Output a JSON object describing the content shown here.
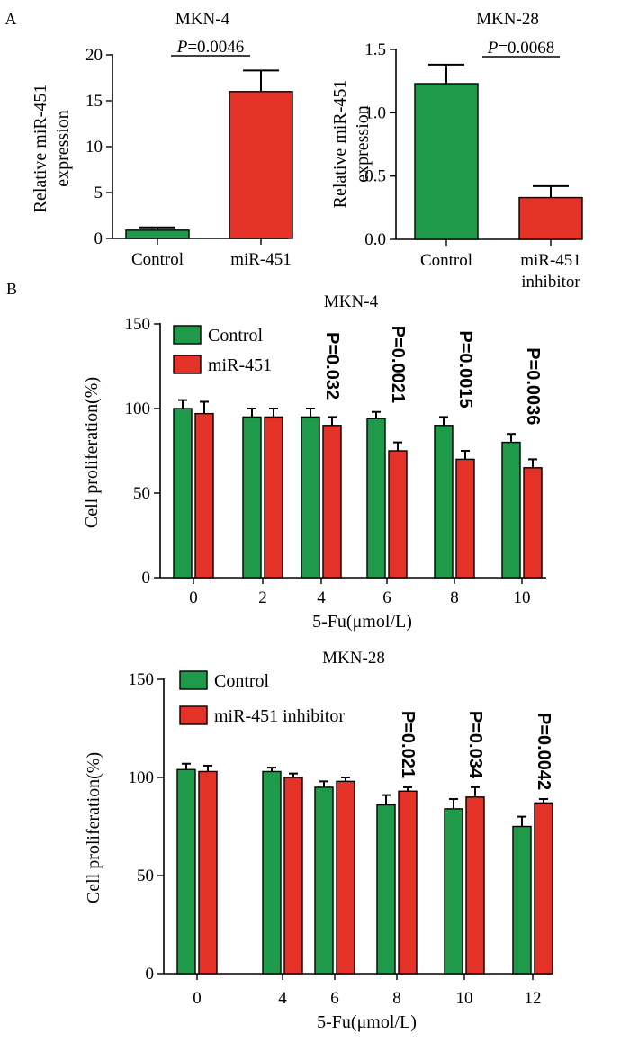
{
  "panel_labels": {
    "a": "A",
    "b": "B"
  },
  "colors": {
    "green": "#1f9a4a",
    "red": "#e53228",
    "axis": "#000000"
  },
  "chart_data": [
    {
      "type": "bar",
      "panel": "A",
      "title": "MKN-4",
      "ylabel": [
        "Relative miR-451",
        "expression"
      ],
      "xlabel": "",
      "categories": [
        [
          "Control"
        ],
        [
          "miR-451"
        ]
      ],
      "values": [
        0.9,
        16.0
      ],
      "errors": [
        0.3,
        2.3
      ],
      "bar_colors": [
        "green",
        "red"
      ],
      "ylim": [
        0,
        20
      ],
      "yticks": [
        0,
        5,
        10,
        15,
        20
      ],
      "yticklabels": [
        "0",
        "5",
        "10",
        "15",
        "20"
      ],
      "significance": {
        "p_italic": "P",
        "p_rest": "=0.0046"
      }
    },
    {
      "type": "bar",
      "panel": "A",
      "title": "MKN-28",
      "ylabel": [
        "Relative miR-451",
        "expression"
      ],
      "xlabel": "",
      "categories": [
        [
          "Control"
        ],
        [
          "miR-451",
          "inhibitor"
        ]
      ],
      "values": [
        1.23,
        0.33
      ],
      "errors": [
        0.15,
        0.09
      ],
      "bar_colors": [
        "green",
        "red"
      ],
      "ylim": [
        0,
        1.5
      ],
      "yticks": [
        0,
        0.5,
        1.0,
        1.5
      ],
      "yticklabels": [
        "0.0",
        "0.5",
        "1.0",
        "1.5"
      ],
      "significance": {
        "p_italic": "P",
        "p_rest": "=0.0068"
      }
    },
    {
      "type": "bar",
      "panel": "B",
      "title": "MKN-4",
      "ylabel": "Cell proliferation(%)",
      "xlabel": "5-Fu(μmol/L)",
      "categories": [
        "0",
        "2",
        "4",
        "6",
        "8",
        "10"
      ],
      "series": [
        {
          "name": "Control",
          "color": "green",
          "values": [
            100,
            95,
            95,
            94,
            90,
            80
          ],
          "errors": [
            5,
            5,
            5,
            4,
            5,
            5
          ]
        },
        {
          "name": "miR-451",
          "color": "red",
          "values": [
            97,
            95,
            90,
            75,
            70,
            65
          ],
          "errors": [
            7,
            5,
            5,
            5,
            5,
            5
          ]
        }
      ],
      "annotations": [
        "",
        "",
        "P=0.032",
        "P=0.0021",
        "P=0.0015",
        "P=0.0036"
      ],
      "ylim": [
        0,
        150
      ],
      "yticks": [
        0,
        50,
        100,
        150
      ],
      "legend": "top-left"
    },
    {
      "type": "bar",
      "panel": "B",
      "title": "MKN-28",
      "ylabel": "Cell proliferation(%)",
      "xlabel": "5-Fu(μmol/L)",
      "categories": [
        "0",
        "4",
        "6",
        "8",
        "10",
        "12"
      ],
      "series": [
        {
          "name": "Control",
          "color": "green",
          "values": [
            104,
            103,
            95,
            86,
            84,
            75
          ],
          "errors": [
            3,
            2,
            3,
            5,
            5,
            5
          ]
        },
        {
          "name": "miR-451 inhibitor",
          "color": "red",
          "values": [
            103,
            100,
            98,
            93,
            90,
            87
          ],
          "errors": [
            3,
            2,
            2,
            2,
            5,
            2
          ]
        }
      ],
      "annotations": [
        "",
        "",
        "",
        "P=0.021",
        "P=0.034",
        "P=0.0042"
      ],
      "ylim": [
        0,
        150
      ],
      "yticks": [
        0,
        50,
        100,
        150
      ],
      "legend": "top-left"
    }
  ]
}
